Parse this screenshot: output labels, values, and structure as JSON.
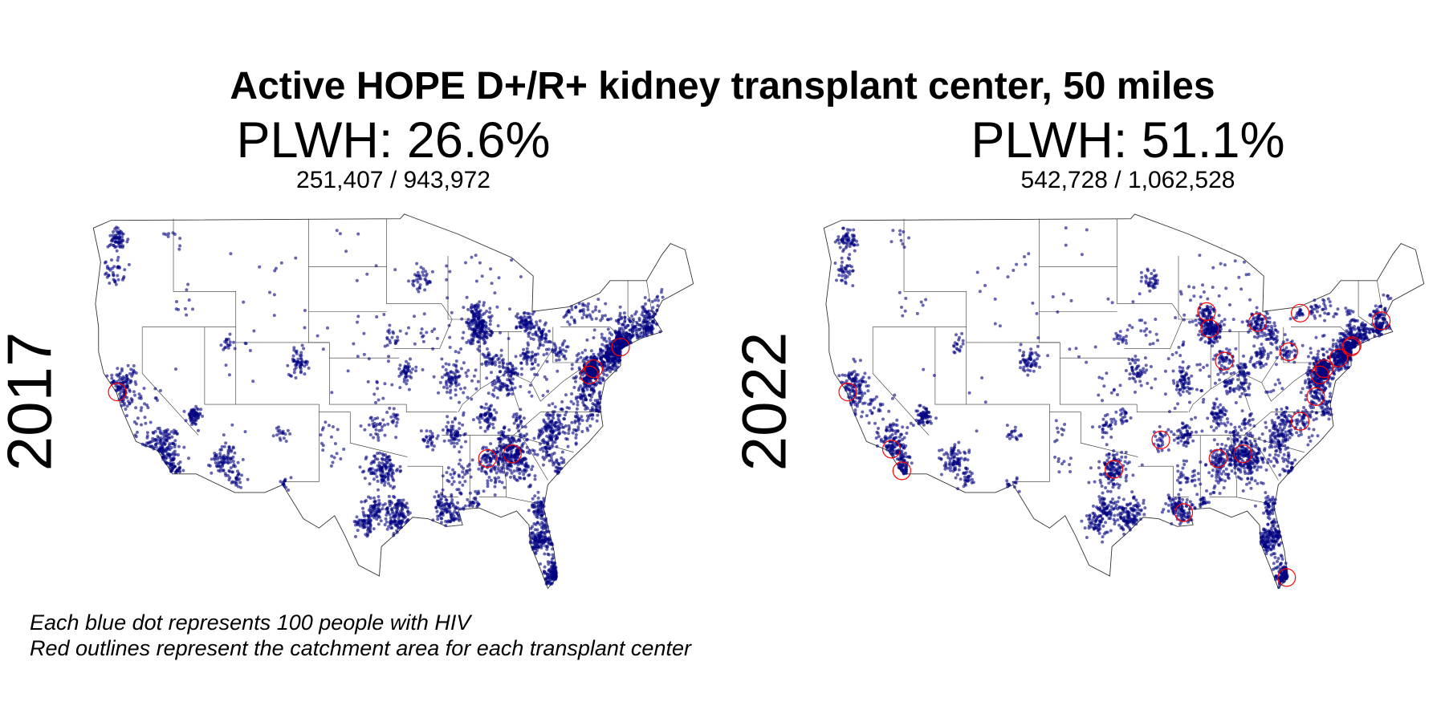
{
  "title": "Active HOPE D+/R+ kidney transplant center, 50 miles",
  "panels": [
    {
      "year": "2017",
      "plwh_text": "PLWH: 26.6%",
      "fraction_text": "251,407 / 943,972",
      "centers": [
        [
          -122.4,
          37.8
        ],
        [
          -86.8,
          33.5
        ],
        [
          -84.4,
          33.8
        ],
        [
          -77.0,
          38.9
        ],
        [
          -76.6,
          39.3
        ],
        [
          -74.0,
          40.7
        ]
      ]
    },
    {
      "year": "2022",
      "plwh_text": "PLWH: 51.1%",
      "fraction_text": "542,728 / 1,062,528",
      "centers": [
        [
          -122.4,
          37.8
        ],
        [
          -118.2,
          34.1
        ],
        [
          -117.2,
          32.7
        ],
        [
          -96.8,
          32.8
        ],
        [
          -92.3,
          34.7
        ],
        [
          -90.1,
          30.0
        ],
        [
          -87.9,
          43.0
        ],
        [
          -87.6,
          41.9
        ],
        [
          -86.2,
          39.8
        ],
        [
          -86.8,
          33.5
        ],
        [
          -84.4,
          33.8
        ],
        [
          -83.0,
          42.3
        ],
        [
          -80.0,
          40.4
        ],
        [
          -78.9,
          42.9
        ],
        [
          -80.2,
          25.8
        ],
        [
          -77.4,
          37.5
        ],
        [
          -76.6,
          39.3
        ],
        [
          -77.0,
          38.9
        ],
        [
          -75.2,
          40.0
        ],
        [
          -74.0,
          40.7
        ],
        [
          -73.9,
          40.8
        ],
        [
          -71.1,
          42.4
        ],
        [
          -78.9,
          35.9
        ]
      ]
    }
  ],
  "notes": [
    "Each blue dot represents 100 people with HIV",
    "Red outlines represent the catchment area for each transplant center"
  ],
  "colors": {
    "dot": "#000080",
    "center_outline": "#ff0000",
    "state_border": "#333333"
  }
}
